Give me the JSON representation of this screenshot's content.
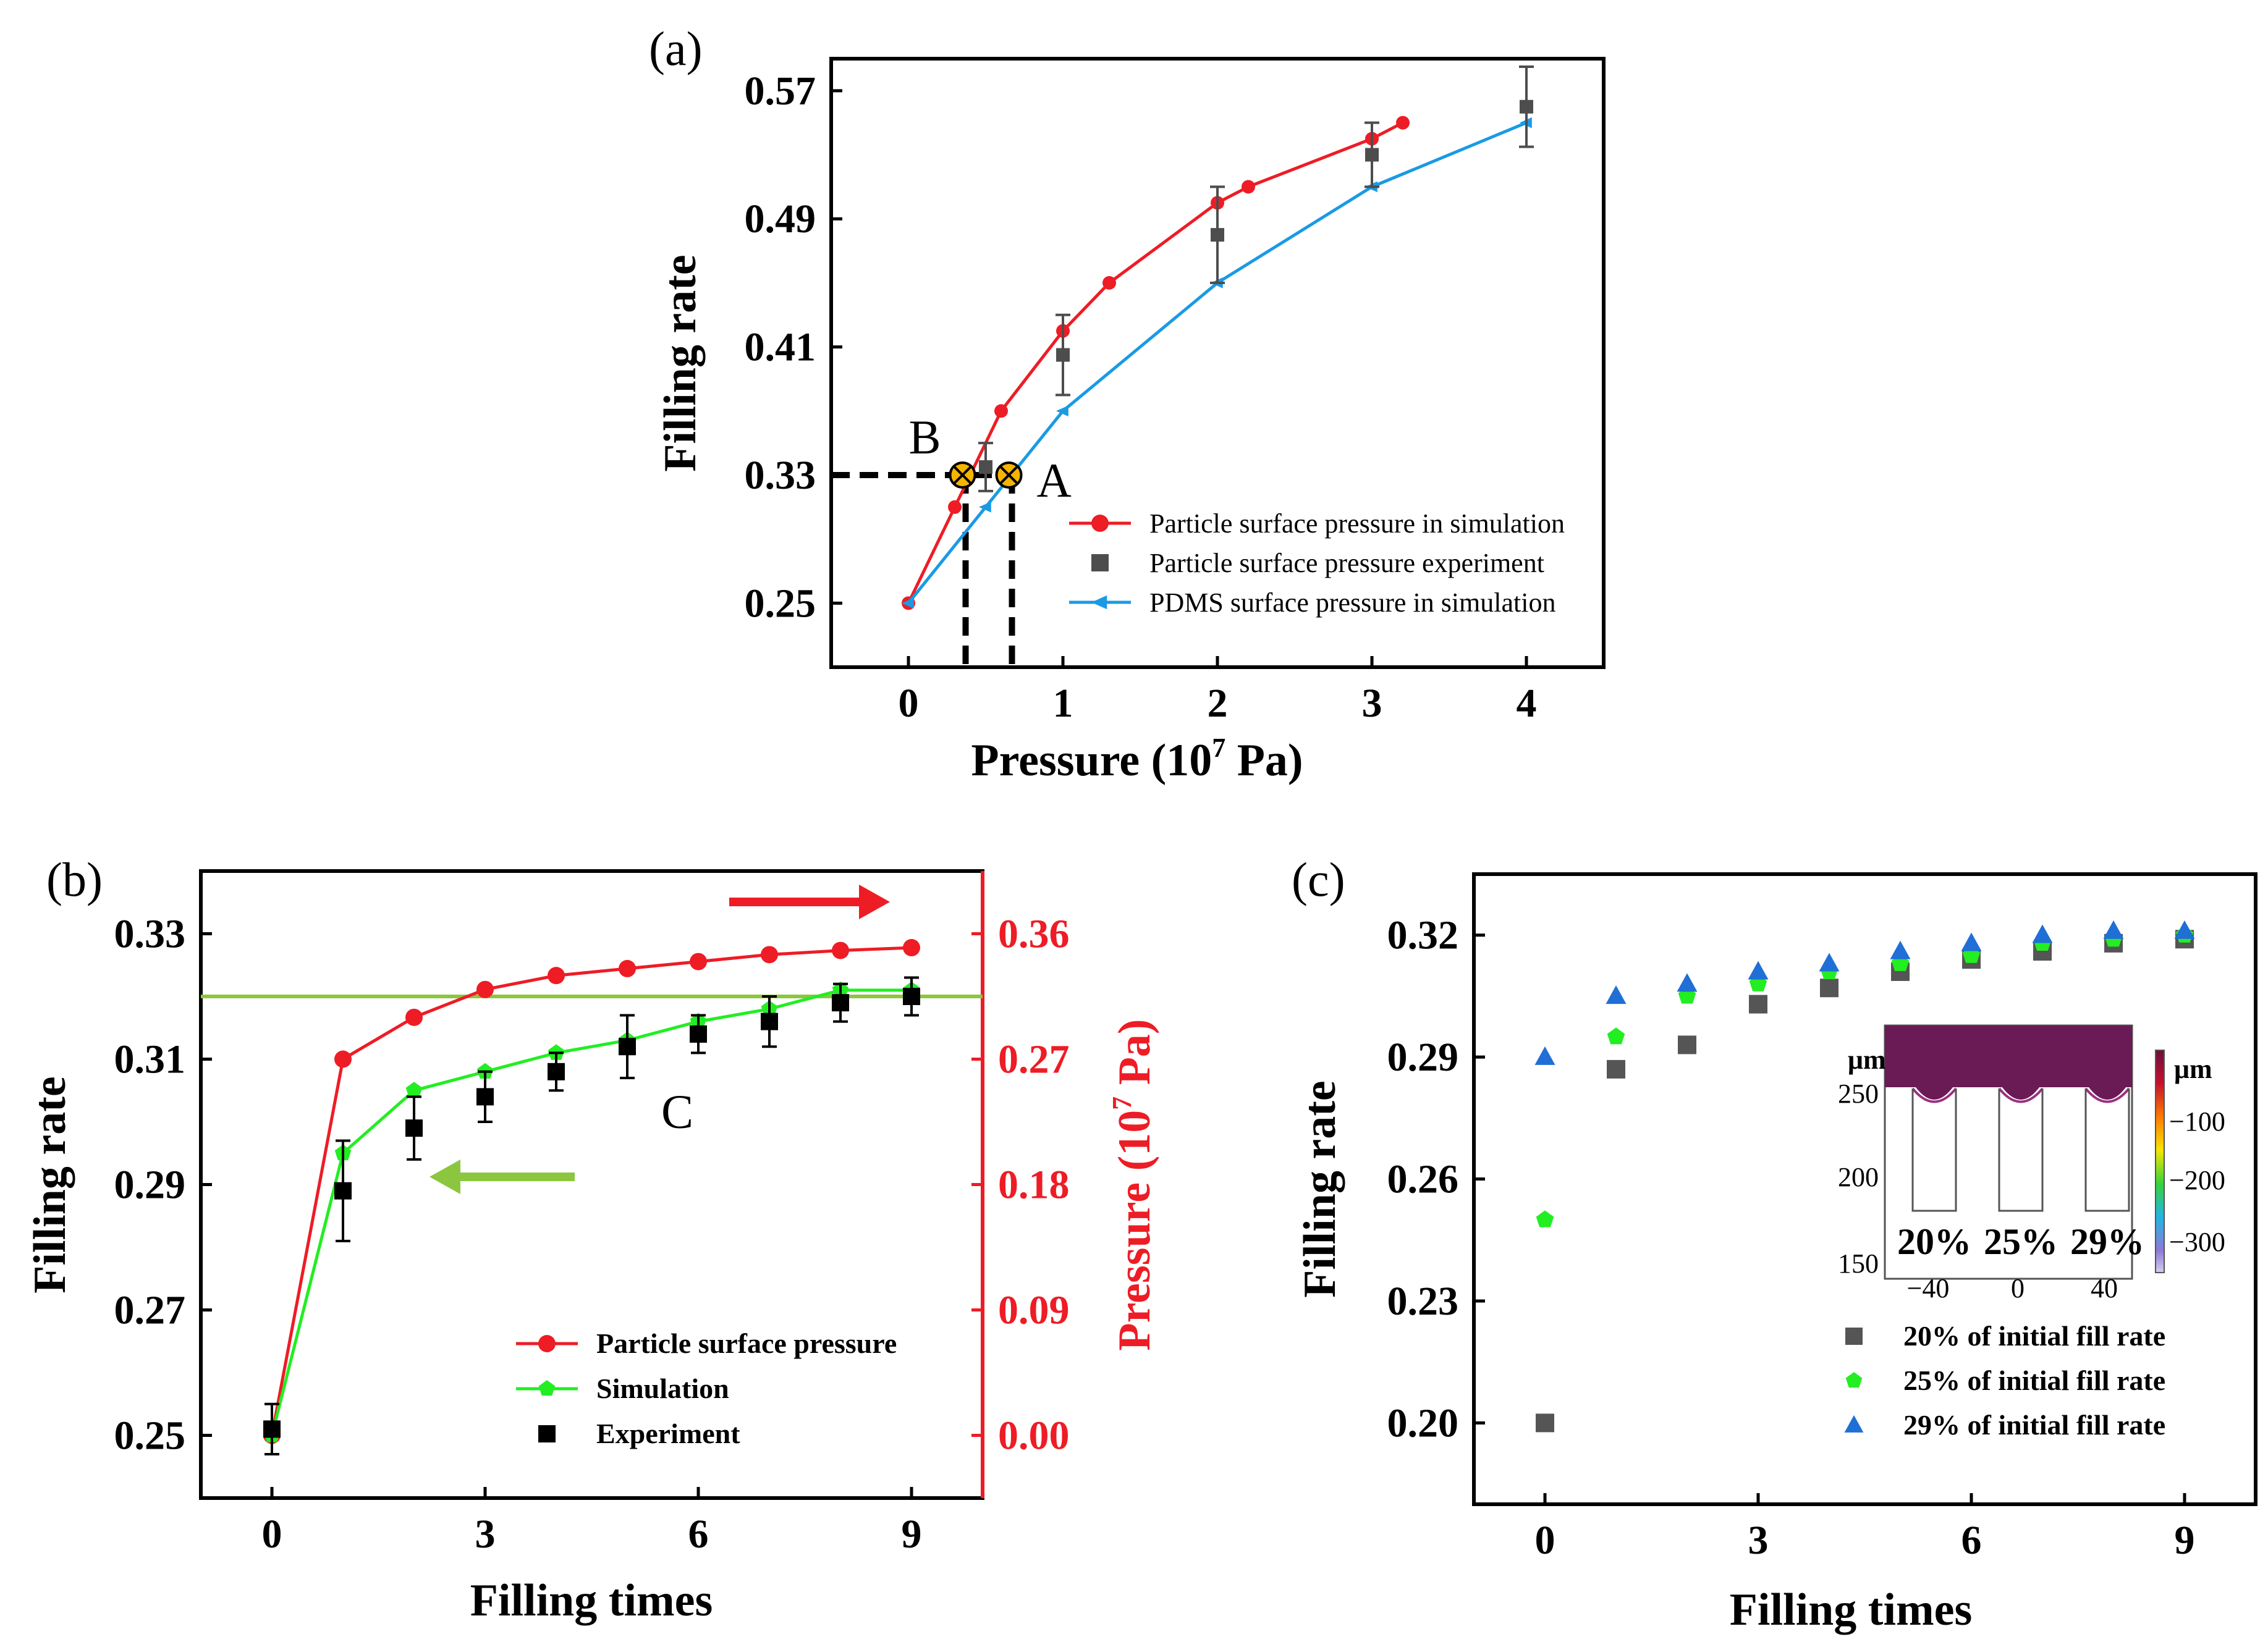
{
  "chart_data": [
    {
      "id": "a",
      "panel_label": "(a)",
      "type": "line",
      "xlabel": "Pressure (10",
      "xlabel_sup": "7",
      "xlabel_end": " Pa)",
      "ylabel": "Filling rate",
      "xlim": [
        -0.5,
        4.5
      ],
      "ylim": [
        0.21,
        0.59
      ],
      "xticks": [
        0,
        1,
        2,
        3,
        4
      ],
      "yticks": [
        0.25,
        0.33,
        0.41,
        0.49,
        0.57
      ],
      "series": [
        {
          "name": "Particle surface pressure in simulation",
          "color": "#ee1c25",
          "marker": "circle",
          "x": [
            0,
            0.3,
            0.6,
            1.0,
            1.3,
            2.0,
            2.2,
            3.0,
            3.2
          ],
          "y": [
            0.25,
            0.31,
            0.37,
            0.42,
            0.45,
            0.5,
            0.51,
            0.54,
            0.55
          ]
        },
        {
          "name": "Particle surface pressure experiment",
          "color": "#4d4d4d",
          "marker": "square",
          "x": [
            0.5,
            1.0,
            2.0,
            3.0,
            4.0
          ],
          "y": [
            0.335,
            0.405,
            0.48,
            0.53,
            0.56
          ],
          "err": [
            0.015,
            0.025,
            0.03,
            0.02,
            0.025
          ]
        },
        {
          "name": "PDMS surface pressure in simulation",
          "color": "#1a9ae5",
          "marker": "triangle-left",
          "x": [
            0,
            0.5,
            1.0,
            2.0,
            3.0,
            4.0
          ],
          "y": [
            0.25,
            0.31,
            0.37,
            0.45,
            0.51,
            0.55
          ]
        }
      ],
      "annotations": [
        {
          "label": "B",
          "x": 0.35,
          "y": 0.33
        },
        {
          "label": "A",
          "x": 0.65,
          "y": 0.33
        }
      ]
    },
    {
      "id": "b",
      "panel_label": "(b)",
      "type": "line",
      "xlabel": "Filling times",
      "ylabel": "Filling rate",
      "ylabel_right": "Pressure (10",
      "ylabel_right_sup": "7",
      "ylabel_right_end": " Pa)",
      "xlim": [
        -1,
        10
      ],
      "ylim": [
        0.24,
        0.34
      ],
      "y2lim": [
        -0.045,
        0.405
      ],
      "xticks": [
        0,
        3,
        6,
        9
      ],
      "yticks": [
        0.25,
        0.27,
        0.29,
        0.31,
        0.33
      ],
      "y2ticks": [
        "0.00",
        "0.09",
        "0.18",
        "0.27",
        "0.36"
      ],
      "y2tick_values": [
        0,
        0.09,
        0.18,
        0.27,
        0.36
      ],
      "hline": 0.32,
      "series": [
        {
          "name": "Particle surface pressure",
          "color": "#ee1c25",
          "marker": "circle",
          "axis": "right",
          "x": [
            0,
            1,
            2,
            3,
            4,
            5,
            6,
            7,
            8,
            9
          ],
          "y": [
            0.0,
            0.27,
            0.3,
            0.32,
            0.33,
            0.335,
            0.34,
            0.345,
            0.348,
            0.35
          ]
        },
        {
          "name": "Simulation",
          "color": "#22ee22",
          "marker": "pentagon",
          "axis": "left",
          "x": [
            0,
            1,
            2,
            3,
            4,
            5,
            6,
            7,
            8,
            9
          ],
          "y": [
            0.25,
            0.295,
            0.305,
            0.308,
            0.311,
            0.313,
            0.316,
            0.318,
            0.321,
            0.321
          ]
        },
        {
          "name": "Experiment",
          "color": "#000000",
          "marker": "square",
          "axis": "left",
          "x": [
            0,
            1,
            2,
            3,
            4,
            5,
            6,
            7,
            8,
            9
          ],
          "y": [
            0.251,
            0.289,
            0.299,
            0.304,
            0.308,
            0.312,
            0.314,
            0.316,
            0.319,
            0.32
          ],
          "err": [
            0.004,
            0.008,
            0.005,
            0.004,
            0.003,
            0.005,
            0.003,
            0.004,
            0.003,
            0.003
          ]
        }
      ],
      "annotations": [
        {
          "label": "C",
          "x": 6,
          "y": 0.304
        }
      ]
    },
    {
      "id": "c",
      "panel_label": "(c)",
      "type": "scatter",
      "xlabel": "Filling times",
      "ylabel": "Filling rate",
      "xlim": [
        -1,
        10
      ],
      "ylim": [
        0.18,
        0.335
      ],
      "xticks": [
        0,
        3,
        6,
        9
      ],
      "yticks": [
        0.2,
        0.23,
        0.26,
        0.29,
        0.32
      ],
      "ytick_labels": [
        "0.20",
        "0.23",
        "0.26",
        "0.29",
        "0.32"
      ],
      "series": [
        {
          "name": "20% of initial fill rate",
          "color": "#555555",
          "marker": "square",
          "x": [
            0,
            1,
            2,
            3,
            4,
            5,
            6,
            7,
            8,
            9
          ],
          "y": [
            0.2,
            0.287,
            0.293,
            0.303,
            0.307,
            0.311,
            0.314,
            0.316,
            0.318,
            0.319
          ]
        },
        {
          "name": "25% of initial fill rate",
          "color": "#22ee22",
          "marker": "pentagon",
          "x": [
            0,
            1,
            2,
            3,
            4,
            5,
            6,
            7,
            8,
            9
          ],
          "y": [
            0.25,
            0.295,
            0.305,
            0.308,
            0.311,
            0.313,
            0.315,
            0.318,
            0.319,
            0.32
          ]
        },
        {
          "name": "29% of initial fill rate",
          "color": "#1f6fd6",
          "marker": "triangle-up",
          "x": [
            0,
            1,
            2,
            3,
            4,
            5,
            6,
            7,
            8,
            9
          ],
          "y": [
            0.29,
            0.305,
            0.308,
            0.311,
            0.313,
            0.316,
            0.318,
            0.32,
            0.321,
            0.321
          ]
        }
      ],
      "inset": {
        "xticks": [
          "−40",
          "0",
          "40"
        ],
        "yticks": [
          "250",
          "200",
          "150"
        ],
        "ylabel": "μm",
        "colorbar_label": "μm",
        "colorbar_ticks": [
          "−100",
          "−200",
          "−300"
        ],
        "labels": [
          "20%",
          "25%",
          "29%"
        ]
      }
    }
  ]
}
